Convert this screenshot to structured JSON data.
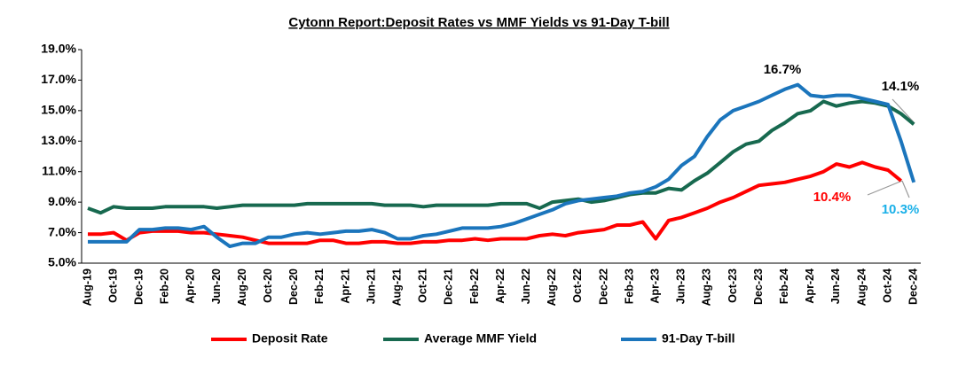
{
  "chart_data": {
    "type": "line",
    "title": "Cytonn Report:Deposit Rates vs MMF Yields vs 91-Day T-bill",
    "categories": [
      "Aug-19",
      null,
      "Oct-19",
      null,
      "Dec-19",
      null,
      "Feb-20",
      null,
      "Apr-20",
      null,
      "Jun-20",
      null,
      "Aug-20",
      null,
      "Oct-20",
      null,
      "Dec-20",
      null,
      "Feb-21",
      null,
      "Apr-21",
      null,
      "Jun-21",
      null,
      "Aug-21",
      null,
      "Oct-21",
      null,
      "Dec-21",
      null,
      "Feb-22",
      null,
      "Apr-22",
      null,
      "Jun-22",
      null,
      "Aug-22",
      null,
      "Oct-22",
      null,
      "Dec-22",
      null,
      "Feb-23",
      null,
      "Apr-23",
      null,
      "Jun-23",
      null,
      "Aug-23",
      null,
      "Oct-23",
      null,
      "Dec-23",
      null,
      "Feb-24",
      null,
      "Apr-24",
      null,
      "Jun-24",
      null,
      "Aug-24",
      null,
      "Oct-24",
      null,
      "Dec-24"
    ],
    "series": [
      {
        "name": "Deposit Rate",
        "color": "#ff0000",
        "values": [
          6.9,
          6.9,
          7.0,
          6.5,
          7.0,
          7.1,
          7.1,
          7.1,
          7.0,
          7.0,
          6.9,
          6.8,
          6.7,
          6.5,
          6.3,
          6.3,
          6.3,
          6.3,
          6.5,
          6.5,
          6.3,
          6.3,
          6.4,
          6.4,
          6.3,
          6.3,
          6.4,
          6.4,
          6.5,
          6.5,
          6.6,
          6.5,
          6.6,
          6.6,
          6.6,
          6.8,
          6.9,
          6.8,
          7.0,
          7.1,
          7.2,
          7.5,
          7.5,
          7.7,
          6.6,
          7.8,
          8.0,
          8.3,
          8.6,
          9.0,
          9.3,
          9.7,
          10.1,
          10.2,
          10.3,
          10.5,
          10.7,
          11.0,
          11.5,
          11.3,
          11.6,
          11.3,
          11.1,
          10.4,
          null
        ]
      },
      {
        "name": "Average MMF Yield",
        "color": "#17694f",
        "values": [
          8.6,
          8.3,
          8.7,
          8.6,
          8.6,
          8.6,
          8.7,
          8.7,
          8.7,
          8.7,
          8.6,
          8.7,
          8.8,
          8.8,
          8.8,
          8.8,
          8.8,
          8.9,
          8.9,
          8.9,
          8.9,
          8.9,
          8.9,
          8.8,
          8.8,
          8.8,
          8.7,
          8.8,
          8.8,
          8.8,
          8.8,
          8.8,
          8.9,
          8.9,
          8.9,
          8.6,
          9.0,
          9.1,
          9.2,
          9.0,
          9.1,
          9.3,
          9.5,
          9.6,
          9.6,
          9.9,
          9.8,
          10.4,
          10.9,
          11.6,
          12.3,
          12.8,
          13.0,
          13.7,
          14.2,
          14.8,
          15.0,
          15.6,
          15.3,
          15.5,
          15.6,
          15.5,
          15.3,
          14.8,
          14.1
        ]
      },
      {
        "name": "91-Day T-bill",
        "color": "#1b75bc",
        "values": [
          6.4,
          6.4,
          6.4,
          6.4,
          7.2,
          7.2,
          7.3,
          7.3,
          7.2,
          7.4,
          6.7,
          6.1,
          6.3,
          6.3,
          6.7,
          6.7,
          6.9,
          7.0,
          6.9,
          7.0,
          7.1,
          7.1,
          7.2,
          7.0,
          6.6,
          6.6,
          6.8,
          6.9,
          7.1,
          7.3,
          7.3,
          7.3,
          7.4,
          7.6,
          7.9,
          8.2,
          8.5,
          8.9,
          9.1,
          9.2,
          9.3,
          9.4,
          9.6,
          9.7,
          10.0,
          10.5,
          11.4,
          12.0,
          13.3,
          14.4,
          15.0,
          15.3,
          15.6,
          16.0,
          16.4,
          16.7,
          16.0,
          15.9,
          16.0,
          16.0,
          15.8,
          15.6,
          15.4,
          13.0,
          10.3
        ]
      }
    ],
    "annotations": [
      "16.7%",
      "14.1%",
      "10.4%",
      "10.3%"
    ],
    "ylim": [
      5,
      19
    ],
    "yticks": [
      {
        "value": 5,
        "label": "5.0%"
      },
      {
        "value": 7,
        "label": "7.0%"
      },
      {
        "value": 9,
        "label": "9.0%"
      },
      {
        "value": 11,
        "label": "11.0%"
      },
      {
        "value": 13,
        "label": "13.0%"
      },
      {
        "value": 15,
        "label": "15.0%"
      },
      {
        "value": 17,
        "label": "17.0%"
      },
      {
        "value": 19,
        "label": "19.0%"
      }
    ],
    "grid": false,
    "legend": "bottom"
  }
}
